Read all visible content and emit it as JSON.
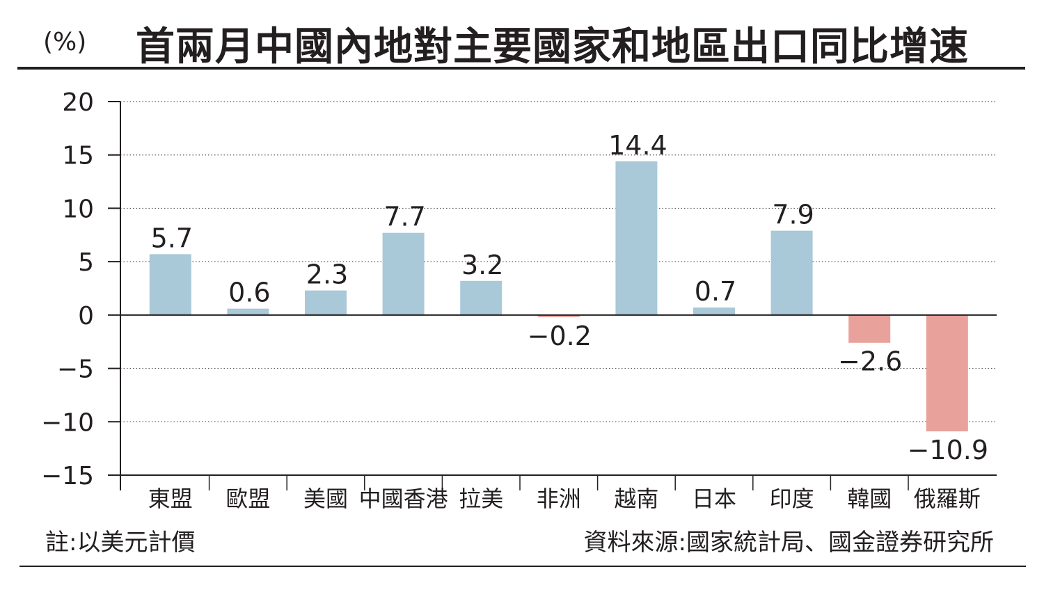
{
  "header": {
    "unit": "(%)",
    "title": "首兩月中國內地對主要國家和地區出口同比增速"
  },
  "footer": {
    "note": "註:以美元計價",
    "source": "資料來源:國家統計局、國金證券研究所"
  },
  "colors": {
    "positive": "#a9c8d8",
    "negative": "#e8a19b",
    "axis": "#231f20",
    "grid": "#555555"
  },
  "chart_data": {
    "type": "bar",
    "title": "首兩月中國內地對主要國家和地區出口同比增速",
    "ylabel": "(%)",
    "ylim": [
      -15,
      20
    ],
    "yticks": [
      20,
      15,
      10,
      5,
      0,
      -5,
      -10,
      -15
    ],
    "ytick_labels": [
      "20",
      "15",
      "10",
      "5",
      "0",
      "−5",
      "−10",
      "−15"
    ],
    "grid": "dotted horizontal",
    "categories": [
      "東盟",
      "歐盟",
      "美國",
      "中國香港",
      "拉美",
      "非洲",
      "越南",
      "日本",
      "印度",
      "韓國",
      "俄羅斯"
    ],
    "values": [
      5.7,
      0.6,
      2.3,
      7.7,
      3.2,
      -0.2,
      14.4,
      0.7,
      7.9,
      -2.6,
      -10.9
    ],
    "value_labels": [
      "5.7",
      "0.6",
      "2.3",
      "7.7",
      "3.2",
      "−0.2",
      "14.4",
      "0.7",
      "7.9",
      "−2.6",
      "−10.9"
    ]
  }
}
